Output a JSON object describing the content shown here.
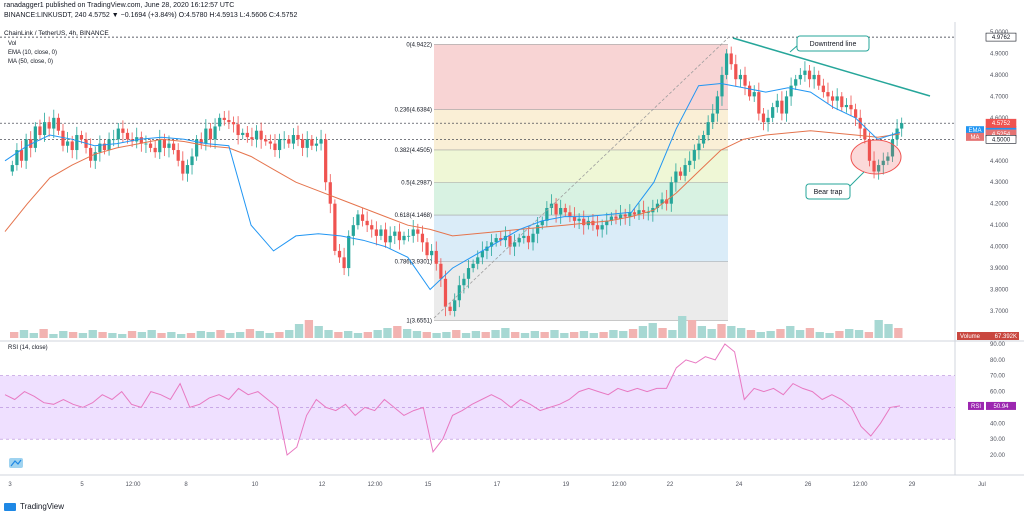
{
  "header": {
    "publish_line": "ranadagger1 published on TradingView.com, June 28, 2020 16:12:57 UTC",
    "symbol_line": "BINANCE:LINKUSDT, 240  4.5752  ▼ −0.1694 (+3.84%)  O:4.5780  H:4.5913  L:4.5606  C:4.5752"
  },
  "legend": {
    "title": "ChainLink / TetherUS, 4h, BINANCE",
    "vol": "Vol",
    "ema": "EMA (10, close, 0)",
    "ma": "MA (50, close, 0)"
  },
  "annotations": {
    "downtrend": "Downtrend line",
    "bear_trap": "Bear trap"
  },
  "price_axis": {
    "ticks": [
      "5.0000",
      "4.9000",
      "4.8000",
      "4.7000",
      "4.6000",
      "4.5000",
      "4.4000",
      "4.3000",
      "4.2000",
      "4.1000",
      "4.0000",
      "3.9000",
      "3.8000",
      "3.7000"
    ],
    "tags": [
      {
        "text": "4.9762",
        "value": 4.9762,
        "bg": "#ffffff",
        "fg": "#131722",
        "border": "#131722"
      },
      {
        "text": "4.5752",
        "value": 4.5752,
        "bg": "#ef5350",
        "fg": "#ffffff",
        "border": "#ef5350"
      },
      {
        "text": "03:47:11",
        "value": 4.542,
        "bg": "#ef5350",
        "fg": "#ffffff",
        "border": "#ef5350"
      },
      {
        "text": "4.5332",
        "value": 4.5332,
        "bg": "#2196f3",
        "fg": "#ffffff",
        "border": "#2196f3"
      },
      {
        "text": "4.5254",
        "value": 4.5254,
        "bg": "#e57373",
        "fg": "#ffffff",
        "border": "#e57373"
      },
      {
        "text": "4.5000",
        "value": 4.5,
        "bg": "#ffffff",
        "fg": "#131722",
        "border": "#131722"
      }
    ],
    "ema_tag": "EMA",
    "ma_tag": "MA",
    "volume_tag": "Volume",
    "volume_value": "67.392K"
  },
  "rsi_axis": {
    "ticks": [
      "90.00",
      "80.00",
      "70.00",
      "60.00",
      "50.00",
      "40.00",
      "30.00",
      "20.00"
    ],
    "label": "RSI (14, close)",
    "tag": "RSI",
    "value": "50.94"
  },
  "x_axis": {
    "ticks": [
      {
        "label": "3",
        "x": 10
      },
      {
        "label": "5",
        "x": 82
      },
      {
        "label": "12:00",
        "x": 133
      },
      {
        "label": "8",
        "x": 186
      },
      {
        "label": "10",
        "x": 255
      },
      {
        "label": "12",
        "x": 322
      },
      {
        "label": "12:00",
        "x": 375
      },
      {
        "label": "15",
        "x": 428
      },
      {
        "label": "17",
        "x": 497
      },
      {
        "label": "19",
        "x": 566
      },
      {
        "label": "12:00",
        "x": 619
      },
      {
        "label": "22",
        "x": 670
      },
      {
        "label": "24",
        "x": 739
      },
      {
        "label": "26",
        "x": 808
      },
      {
        "label": "12:00",
        "x": 860
      },
      {
        "label": "29",
        "x": 912
      },
      {
        "label": "Jul",
        "x": 982
      }
    ]
  },
  "colors": {
    "up": "#26a69a",
    "down": "#ef5350",
    "ema": "#2196f3",
    "ma": "#e5744d",
    "rsi": "#e879c2",
    "rsi_band": "#efe0ff",
    "trend": "#26a69a"
  },
  "footer": {
    "brand": "TradingView"
  },
  "chart_data": {
    "type": "candlestick",
    "title": "ChainLink / TetherUS, 4h, BINANCE",
    "ylim": [
      3.65,
      5.0
    ],
    "fibonacci": [
      {
        "ratio": "0",
        "value": 4.9422,
        "label": "0(4.9422)",
        "fill": "#f5c6c6"
      },
      {
        "ratio": "0.236",
        "value": 4.6384,
        "label": "0.236(4.6384)",
        "fill": "#f8e9c8"
      },
      {
        "ratio": "0.382",
        "value": 4.4505,
        "label": "0.382(4.4505)",
        "fill": "#e9f4c8"
      },
      {
        "ratio": "0.5",
        "value": 4.2987,
        "label": "0.5(4.2987)",
        "fill": "#cbeed8"
      },
      {
        "ratio": "0.618",
        "value": 4.1468,
        "label": "0.618(4.1468)",
        "fill": "#cde6f5"
      },
      {
        "ratio": "0.786",
        "value": 3.9301,
        "label": "0.786(3.9301)",
        "fill": "#e4e4e4"
      },
      {
        "ratio": "1",
        "value": 3.6551,
        "label": "1(3.6551)",
        "fill": ""
      }
    ],
    "horizontal_levels": [
      4.9762,
      4.5752,
      4.5
    ],
    "closes": [
      4.38,
      4.45,
      4.4,
      4.5,
      4.46,
      4.56,
      4.52,
      4.58,
      4.55,
      4.6,
      4.54,
      4.47,
      4.49,
      4.45,
      4.52,
      4.5,
      4.46,
      4.4,
      4.44,
      4.48,
      4.45,
      4.5,
      4.5,
      4.55,
      4.53,
      4.5,
      4.49,
      4.51,
      4.48,
      4.48,
      4.46,
      4.44,
      4.5,
      4.46,
      4.48,
      4.45,
      4.4,
      4.34,
      4.38,
      4.42,
      4.5,
      4.48,
      4.55,
      4.5,
      4.56,
      4.6,
      4.59,
      4.58,
      4.57,
      4.52,
      4.53,
      4.51,
      4.5,
      4.54,
      4.5,
      4.49,
      4.48,
      4.45,
      4.5,
      4.5,
      4.48,
      4.52,
      4.5,
      4.46,
      4.5,
      4.47,
      4.48,
      4.5,
      4.3,
      4.2,
      3.98,
      3.95,
      3.9,
      4.05,
      4.1,
      4.15,
      4.12,
      4.1,
      4.08,
      4.05,
      4.08,
      4.02,
      4.05,
      4.07,
      4.03,
      4.05,
      4.05,
      4.08,
      4.06,
      4.02,
      3.96,
      3.98,
      3.92,
      3.85,
      3.72,
      3.7,
      3.75,
      3.82,
      3.85,
      3.9,
      3.92,
      3.95,
      3.98,
      4.0,
      4.02,
      4.04,
      4.03,
      4.05,
      4.0,
      4.02,
      4.04,
      4.05,
      4.02,
      4.06,
      4.1,
      4.12,
      4.18,
      4.2,
      4.15,
      4.18,
      4.16,
      4.14,
      4.12,
      4.13,
      4.1,
      4.12,
      4.1,
      4.08,
      4.1,
      4.12,
      4.14,
      4.13,
      4.15,
      4.14,
      4.16,
      4.15,
      4.17,
      4.16,
      4.16,
      4.18,
      4.2,
      4.22,
      4.2,
      4.3,
      4.35,
      4.33,
      4.38,
      4.4,
      4.45,
      4.48,
      4.52,
      4.58,
      4.62,
      4.7,
      4.8,
      4.9,
      4.85,
      4.78,
      4.8,
      4.75,
      4.7,
      4.72,
      4.62,
      4.58,
      4.6,
      4.65,
      4.68,
      4.62,
      4.7,
      4.75,
      4.78,
      4.8,
      4.82,
      4.78,
      4.8,
      4.75,
      4.72,
      4.7,
      4.68,
      4.7,
      4.65,
      4.66,
      4.64,
      4.6,
      4.55,
      4.5,
      4.4,
      4.35,
      4.38,
      4.4,
      4.42,
      4.5,
      4.55,
      4.5752
    ],
    "ema10": [
      4.4,
      4.47,
      4.52,
      4.5,
      4.47,
      4.48,
      4.5,
      4.51,
      4.5,
      4.48,
      4.47,
      4.1,
      3.98,
      4.05,
      4.06,
      4.05,
      4.03,
      4.0,
      3.95,
      3.8,
      3.9,
      3.96,
      4.02,
      4.08,
      4.12,
      4.14,
      4.14,
      4.15,
      4.16,
      4.3,
      4.55,
      4.75,
      4.76,
      4.74,
      4.72,
      4.74,
      4.72,
      4.65,
      4.6,
      4.5,
      4.5332
    ],
    "ma50": [
      4.07,
      4.2,
      4.32,
      4.38,
      4.43,
      4.46,
      4.48,
      4.5,
      4.49,
      4.47,
      4.46,
      4.42,
      4.36,
      4.3,
      4.26,
      4.22,
      4.18,
      4.14,
      4.1,
      4.08,
      4.05,
      4.06,
      4.07,
      4.08,
      4.09,
      4.1,
      4.11,
      4.12,
      4.14,
      4.17,
      4.25,
      4.35,
      4.45,
      4.5,
      4.52,
      4.53,
      4.54,
      4.53,
      4.52,
      4.51,
      4.5254
    ],
    "rsi": [
      58,
      55,
      60,
      57,
      53,
      52,
      55,
      52,
      50,
      53,
      58,
      55,
      60,
      52,
      50,
      60,
      58,
      55,
      65,
      50,
      52,
      56,
      58,
      55,
      62,
      58,
      60,
      55,
      50,
      20,
      25,
      45,
      55,
      50,
      48,
      52,
      45,
      50,
      48,
      55,
      50,
      45,
      48,
      50,
      22,
      30,
      45,
      48,
      52,
      55,
      58,
      55,
      50,
      55,
      52,
      48,
      50,
      52,
      55,
      60,
      62,
      60,
      58,
      62,
      60,
      62,
      60,
      62,
      62,
      75,
      80,
      78,
      82,
      80,
      90,
      85,
      55,
      62,
      60,
      62,
      58,
      65,
      62,
      60,
      55,
      58,
      55,
      50,
      38,
      32,
      40,
      50,
      50.94
    ],
    "rsi_band": [
      30,
      70
    ],
    "volume": [
      6,
      8,
      5,
      9,
      4,
      7,
      6,
      5,
      8,
      6,
      5,
      4,
      7,
      6,
      8,
      5,
      6,
      4,
      5,
      7,
      6,
      8,
      5,
      6,
      9,
      7,
      5,
      6,
      8,
      14,
      18,
      12,
      8,
      6,
      7,
      5,
      6,
      8,
      10,
      12,
      9,
      7,
      6,
      5,
      6,
      8,
      5,
      7,
      6,
      8,
      10,
      6,
      5,
      7,
      6,
      8,
      5,
      6,
      7,
      5,
      6,
      8,
      7,
      9,
      12,
      15,
      10,
      8,
      22,
      18,
      12,
      9,
      14,
      12,
      10,
      8,
      6,
      7,
      9,
      12,
      8,
      10,
      6,
      5,
      7,
      9,
      8,
      6,
      18,
      14,
      10
    ]
  }
}
